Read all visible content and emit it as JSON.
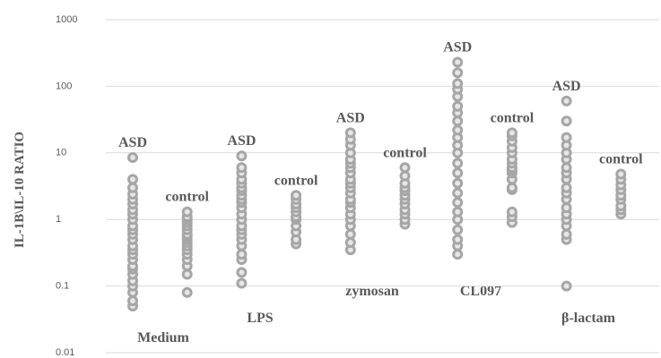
{
  "chart_data": {
    "type": "strip",
    "y_label": "IL-1B\\IL-10 RATIO",
    "log_y": true,
    "ylim": [
      0.01,
      1000
    ],
    "yticks": [
      0.01,
      0.1,
      1,
      10,
      100,
      1000
    ],
    "grid": true,
    "color": "#a6a6a6",
    "categories": [
      "ASD",
      "control",
      "ASD",
      "control",
      "ASD",
      "control",
      "ASD",
      "control",
      "ASD",
      "control"
    ],
    "stimuli": [
      "Medium",
      "LPS",
      "zymosan",
      "CL097",
      "β-lactam"
    ],
    "values": [
      [
        0.05,
        0.06,
        0.08,
        0.1,
        0.12,
        0.12,
        0.15,
        0.18,
        0.2,
        0.25,
        0.3,
        0.35,
        0.4,
        0.5,
        0.6,
        0.7,
        0.8,
        1,
        1.2,
        1.4,
        1.7,
        2,
        2.4,
        3,
        4,
        8.5
      ],
      [
        0.08,
        0.15,
        0.2,
        0.25,
        0.3,
        0.35,
        0.4,
        0.45,
        0.5,
        0.55,
        0.6,
        0.7,
        0.8,
        0.9,
        1,
        1.1,
        1.3
      ],
      [
        0.11,
        0.16,
        0.25,
        0.3,
        0.4,
        0.5,
        0.6,
        0.7,
        0.8,
        1,
        1.2,
        1.5,
        1.8,
        2,
        2.3,
        2.7,
        3,
        3.5,
        4,
        5,
        6,
        9
      ],
      [
        0.43,
        0.5,
        0.65,
        0.8,
        1,
        1.1,
        1.3,
        1.5,
        1.7,
        2,
        2.3
      ],
      [
        0.35,
        0.45,
        0.6,
        0.8,
        1,
        1.2,
        1.5,
        1.8,
        2,
        2.5,
        3,
        3.5,
        4,
        5,
        6,
        7,
        8,
        10,
        13,
        16,
        20
      ],
      [
        0.85,
        1,
        1.2,
        1.4,
        1.7,
        2,
        2.3,
        2.7,
        3,
        3.5,
        4.5,
        6
      ],
      [
        0.3,
        0.4,
        0.5,
        0.7,
        1,
        1.3,
        1.8,
        2.5,
        3.5,
        5,
        7,
        10,
        13,
        17,
        22,
        30,
        40,
        50,
        70,
        90,
        110,
        160,
        230
      ],
      [
        0.9,
        1.1,
        1.3,
        2.8,
        3,
        4,
        5,
        5.5,
        6,
        7,
        8,
        10,
        12,
        15,
        18,
        20
      ],
      [
        0.1,
        0.5,
        0.6,
        0.8,
        1,
        1.2,
        1.5,
        2,
        2.5,
        3,
        4,
        5,
        6,
        8,
        10,
        13,
        17,
        30,
        60
      ],
      [
        1.2,
        1.4,
        1.6,
        2,
        2.3,
        2.8,
        3.3,
        4,
        4.8
      ]
    ]
  }
}
